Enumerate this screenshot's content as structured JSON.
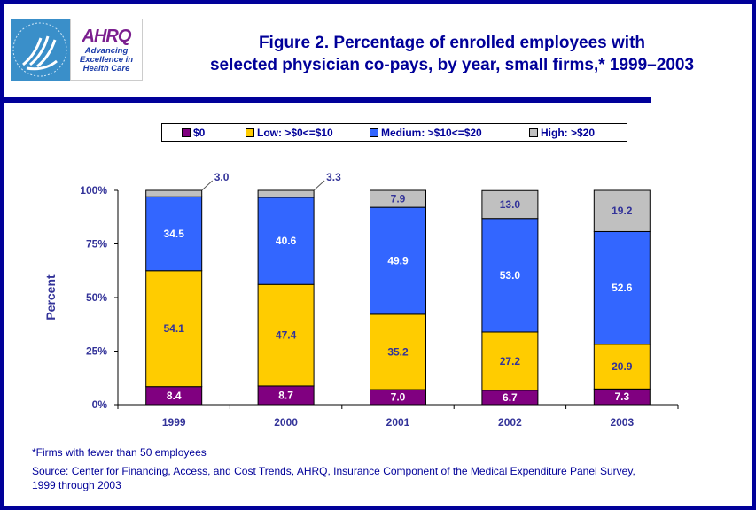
{
  "header": {
    "logo_hhs_alt": "HHS eagle logo",
    "logo_ahrq": "AHRQ",
    "logo_tagline": [
      "Advancing",
      "Excellence in",
      "Health Care"
    ],
    "title_line1": "Figure 2. Percentage of enrolled employees with",
    "title_line2": "selected physician co-pays, by year, small firms,* 1999–2003"
  },
  "legend": {
    "items": [
      {
        "label": "$0",
        "color": "#800080"
      },
      {
        "label": "Low: >$0<=$10",
        "color": "#ffcc00"
      },
      {
        "label": "Medium: >$10<=$20",
        "color": "#3366ff"
      },
      {
        "label": "High: >$20",
        "color": "#c0c0c0"
      }
    ]
  },
  "chart_data": {
    "type": "bar",
    "stacked": true,
    "title": "Figure 2. Percentage of enrolled employees with selected physician co-pays, by year, small firms,* 1999–2003",
    "xlabel": "",
    "ylabel": "Percent",
    "ylim": [
      0,
      100
    ],
    "yticks": [
      "0%",
      "25%",
      "50%",
      "75%",
      "100%"
    ],
    "ytick_values": [
      0,
      25,
      50,
      75,
      100
    ],
    "categories": [
      "1999",
      "2000",
      "2001",
      "2002",
      "2003"
    ],
    "series": [
      {
        "name": "$0",
        "color": "#800080",
        "values": [
          8.4,
          8.7,
          7.0,
          6.7,
          7.3
        ],
        "labels": [
          "8.4",
          "8.7",
          "7.0",
          "6.7",
          "7.3"
        ],
        "label_color": "#ffffff"
      },
      {
        "name": "Low: >$0<=$10",
        "color": "#ffcc00",
        "values": [
          54.1,
          47.4,
          35.2,
          27.2,
          20.9
        ],
        "labels": [
          "54.1",
          "47.4",
          "35.2",
          "27.2",
          "20.9"
        ],
        "label_color": "#333399"
      },
      {
        "name": "Medium: >$10<=$20",
        "color": "#3366ff",
        "values": [
          34.5,
          40.6,
          49.9,
          53.0,
          52.6
        ],
        "labels": [
          "34.5",
          "40.6",
          "49.9",
          "53.0",
          "52.6"
        ],
        "label_color": "#ffffff"
      },
      {
        "name": "High: >$20",
        "color": "#c0c0c0",
        "values": [
          3.0,
          3.3,
          7.9,
          13.0,
          19.2
        ],
        "labels": [
          "3.0",
          "3.3",
          "7.9",
          "13.0",
          "19.2"
        ],
        "label_color": "#333399"
      }
    ],
    "legend_position": "top",
    "grid": false
  },
  "notes": {
    "footnote": "*Firms with fewer than 50 employees",
    "source_line1": "Source: Center for Financing, Access, and Cost Trends, AHRQ, Insurance Component of the Medical Expenditure Panel Survey,",
    "source_line2": "1999 through 2003"
  }
}
